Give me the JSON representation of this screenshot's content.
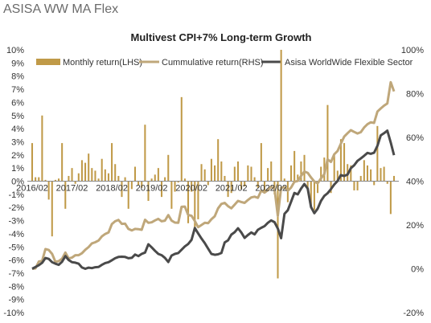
{
  "header": {
    "title": "ASISA WW MA Flex"
  },
  "colors": {
    "bar": "#C09A48",
    "cumulative": "#BFA77A",
    "sector": "#4A4A4A",
    "axis": "#999999",
    "zero": "#888888"
  },
  "chart_data": {
    "type": "bar+line",
    "title": "Multivest CPI+7% Long-term Growth",
    "legend": {
      "placement": "top",
      "entries": [
        "Monthly return(LHS)",
        "Cummulative return(RHS)",
        "Asisa WorldWide Flexible Sector"
      ]
    },
    "x_ticks": [
      "2016/02",
      "2017/02",
      "2018/02",
      "2019/02",
      "2020/02",
      "2021/02",
      "2022/02"
    ],
    "y_left": {
      "min": -10,
      "max": 10,
      "ticks": [
        "10%",
        "9%",
        "8%",
        "7%",
        "6%",
        "5%",
        "4%",
        "3%",
        "2%",
        "1%",
        "0%",
        "-1%",
        "-2%",
        "-3%",
        "-4%",
        "-5%",
        "-6%",
        "-7%",
        "-8%",
        "-9%",
        "-10%"
      ]
    },
    "y_right": {
      "min": -20,
      "max": 100,
      "ticks": [
        "100%",
        "80%",
        "60%",
        "40%",
        "20%",
        "0%",
        "-20%"
      ]
    },
    "series": [
      {
        "name": "Monthly return(LHS)",
        "kind": "bar",
        "axis": "left",
        "values": [
          2.9,
          0.3,
          0.3,
          5.0,
          0.1,
          -1.4,
          -4.2,
          0.1,
          0.2,
          2.9,
          -2.1,
          0.4,
          1.0,
          -0.2,
          0.6,
          1.6,
          1.4,
          2.1,
          1.0,
          0.8,
          0.2,
          1.7,
          0.9,
          0.6,
          2.9,
          1.3,
          0.4,
          -1.2,
          0.3,
          -2.1,
          -0.6,
          1.1,
          -0.3,
          -0.5,
          4.3,
          -1.5,
          0.2,
          0.5,
          1.0,
          -1.2,
          0.3,
          2.0,
          -2.1,
          -0.8,
          -0.1,
          6.4,
          0.2,
          -3.2,
          -0.8,
          -3.8,
          -2.9,
          1.3,
          0.9,
          -0.3,
          1.7,
          1.2,
          3.2,
          1.5,
          0.4,
          -1.2,
          -0.9,
          1.1,
          1.5,
          -0.6,
          -0.4,
          1.2,
          1.1,
          0.3,
          -0.5,
          2.9,
          -0.8,
          1.0,
          1.5,
          -1.0,
          -7.4,
          10.0,
          0.2,
          -1.6,
          1.2,
          2.3,
          0.5,
          1.5,
          2.0,
          -0.6,
          -1.9,
          -2.2,
          -0.9,
          1.1,
          1.8,
          5.8,
          -0.9,
          2.1,
          0.8,
          3.2,
          2.9,
          1.3,
          1.2,
          -0.7,
          -0.7,
          0.4,
          1.6,
          1.2,
          0.9,
          -0.3,
          4.2,
          1.0,
          1.1,
          -0.2,
          -2.5,
          0.4
        ]
      },
      {
        "name": "Cummulative return(RHS)",
        "kind": "line",
        "axis": "right",
        "values": [
          0.0,
          0.2,
          3.3,
          3.6,
          9.0,
          8.6,
          6.8,
          3.2,
          3.5,
          4.6,
          7.4,
          4.7,
          5.1,
          6.2,
          6.2,
          7.1,
          8.7,
          9.9,
          11.6,
          12.1,
          12.9,
          14.8,
          15.9,
          16.6,
          20.4,
          21.7,
          22.3,
          20.5,
          20.6,
          18.2,
          17.5,
          18.2,
          18.1,
          17.8,
          22.4,
          21.0,
          21.2,
          22.1,
          22.8,
          21.7,
          22.0,
          24.5,
          22.0,
          21.1,
          21.0,
          28.3,
          28.4,
          24.6,
          24.2,
          21.8,
          19.0,
          20.0,
          21.0,
          20.8,
          22.6,
          24.0,
          27.6,
          29.6,
          30.1,
          28.6,
          27.6,
          29.3,
          31.0,
          30.5,
          30.1,
          31.4,
          32.6,
          32.9,
          32.4,
          35.7,
          34.8,
          35.9,
          37.5,
          36.5,
          24.2,
          37.0,
          37.3,
          35.6,
          37.1,
          39.7,
          40.1,
          42.4,
          44.4,
          43.8,
          41.7,
          39.9,
          39.0,
          41.3,
          43.2,
          50.0,
          48.8,
          52.3,
          53.8,
          57.1,
          60.4,
          61.9,
          63.3,
          62.5,
          61.8,
          62.4,
          64.5,
          66.0,
          66.9,
          66.6,
          71.8,
          73.2,
          74.5,
          75.5,
          85.2,
          81.0
        ]
      },
      {
        "name": "Asisa WorldWide Flexible Sector",
        "kind": "line",
        "axis": "right",
        "values": [
          0.0,
          0.8,
          1.6,
          2.7,
          4.9,
          4.5,
          3.0,
          2.3,
          1.8,
          3.2,
          5.8,
          4.0,
          3.0,
          2.8,
          2.3,
          0.6,
          0.0,
          0.5,
          0.3,
          0.7,
          0.8,
          1.8,
          2.6,
          3.0,
          3.9,
          4.8,
          5.4,
          5.5,
          5.4,
          4.8,
          5.0,
          6.5,
          5.8,
          6.8,
          7.4,
          11.2,
          9.8,
          8.2,
          6.8,
          6.2,
          5.0,
          3.1,
          6.0,
          6.8,
          7.2,
          8.7,
          10.2,
          11.3,
          13.2,
          18.6,
          16.2,
          13.8,
          11.7,
          9.2,
          6.8,
          6.4,
          6.6,
          7.2,
          12.0,
          13.0,
          15.6,
          16.7,
          18.5,
          16.6,
          14.1,
          15.4,
          16.6,
          15.7,
          17.8,
          18.7,
          19.5,
          21.0,
          22.1,
          21.3,
          18.4,
          14.0,
          25.1,
          26.7,
          30.6,
          34.6,
          34.0,
          36.6,
          38.7,
          36.6,
          28.2,
          25.4,
          27.4,
          31.0,
          33.3,
          34.5,
          36.4,
          38.5,
          40.1,
          42.8,
          42.4,
          43.0,
          45.9,
          47.3,
          49.3,
          50.4,
          51.6,
          52.9,
          52.5,
          53.0,
          56.2,
          60.9,
          61.9,
          63.1,
          57.7,
          51.9
        ]
      }
    ],
    "grid": false
  }
}
